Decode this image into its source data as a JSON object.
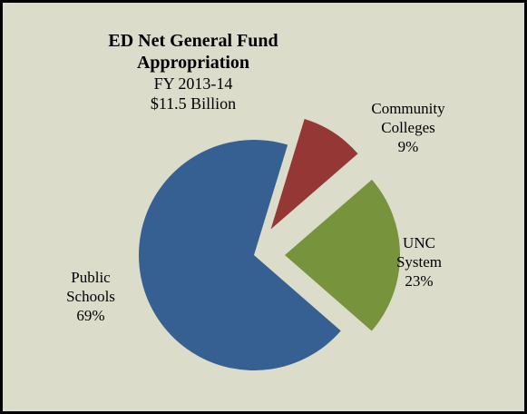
{
  "chart_data": {
    "type": "pie",
    "title": "ED Net General Fund Appropriation",
    "subtitle_lines": [
      "FY 2013-14",
      "$11.5 Billion"
    ],
    "slices": [
      {
        "name": "Community Colleges",
        "label_lines": [
          "Community",
          "Colleges",
          "9%"
        ],
        "value": 9,
        "color": "#953735",
        "exploded": true
      },
      {
        "name": "UNC System",
        "label_lines": [
          "UNC",
          "System",
          "23%"
        ],
        "value": 23,
        "color": "#77933c",
        "exploded": true
      },
      {
        "name": "Public Schools",
        "label_lines": [
          "Public",
          "Schools",
          "69%"
        ],
        "value": 69,
        "color": "#376092",
        "exploded": false
      }
    ],
    "background_color": "#dcdccb"
  }
}
